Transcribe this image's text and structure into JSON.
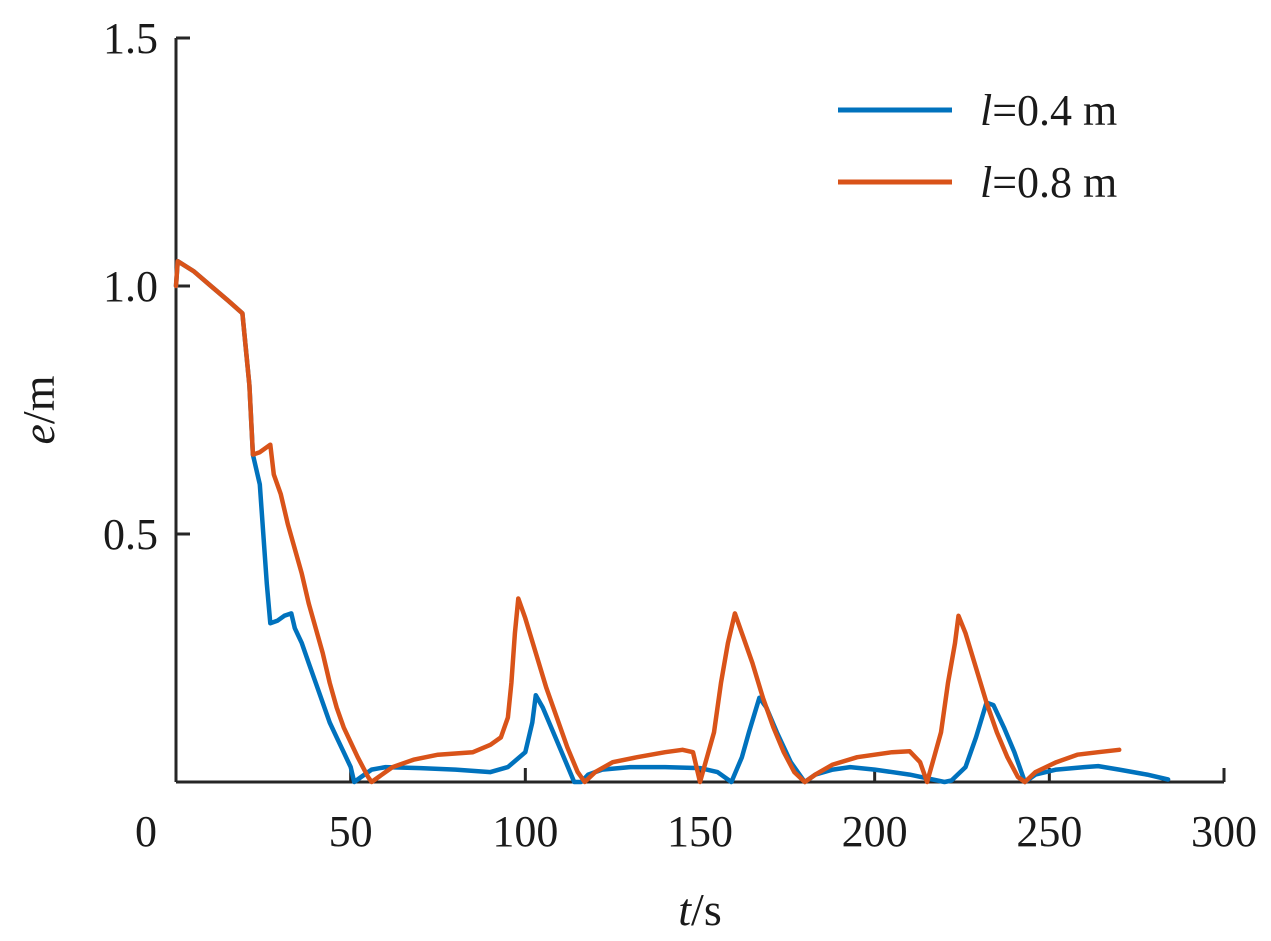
{
  "chart_data": {
    "type": "line",
    "xlabel": {
      "var": "t",
      "unit": "/s"
    },
    "ylabel": {
      "var": "e",
      "unit": "/m"
    },
    "xlim": [
      0,
      300
    ],
    "ylim": [
      0,
      1.5
    ],
    "xticks": [
      "0",
      "50",
      "100",
      "150",
      "200",
      "250",
      "300"
    ],
    "yticks": [
      "0.5",
      "1.0",
      "1.5"
    ],
    "xtick_values": [
      0,
      50,
      100,
      150,
      200,
      250,
      300
    ],
    "ytick_values": [
      0.5,
      1.0,
      1.5
    ],
    "grid": false,
    "legend_position": "top-right",
    "series": [
      {
        "name": "l=0.4 m",
        "legend_var": "l",
        "legend_rest": "=0.4 m",
        "color": "#0072BD",
        "points": [
          [
            0,
            1.0
          ],
          [
            0.5,
            1.05
          ],
          [
            5,
            1.03
          ],
          [
            10,
            1.0
          ],
          [
            15,
            0.97
          ],
          [
            19,
            0.945
          ],
          [
            21,
            0.8
          ],
          [
            22,
            0.66
          ],
          [
            24,
            0.6
          ],
          [
            25,
            0.5
          ],
          [
            26,
            0.4
          ],
          [
            27,
            0.32
          ],
          [
            29,
            0.325
          ],
          [
            31,
            0.335
          ],
          [
            33,
            0.34
          ],
          [
            34,
            0.31
          ],
          [
            36,
            0.28
          ],
          [
            38,
            0.24
          ],
          [
            40,
            0.2
          ],
          [
            42,
            0.16
          ],
          [
            44,
            0.12
          ],
          [
            46,
            0.09
          ],
          [
            48,
            0.06
          ],
          [
            50,
            0.03
          ],
          [
            51,
            0.0
          ],
          [
            53,
            0.01
          ],
          [
            56,
            0.025
          ],
          [
            60,
            0.03
          ],
          [
            70,
            0.028
          ],
          [
            80,
            0.025
          ],
          [
            90,
            0.02
          ],
          [
            95,
            0.03
          ],
          [
            100,
            0.06
          ],
          [
            102,
            0.12
          ],
          [
            103,
            0.175
          ],
          [
            105,
            0.15
          ],
          [
            108,
            0.1
          ],
          [
            111,
            0.05
          ],
          [
            114,
            0.0
          ],
          [
            116,
            0.0
          ],
          [
            118,
            0.015
          ],
          [
            122,
            0.025
          ],
          [
            130,
            0.03
          ],
          [
            140,
            0.03
          ],
          [
            150,
            0.028
          ],
          [
            155,
            0.02
          ],
          [
            159,
            0.0
          ],
          [
            162,
            0.05
          ],
          [
            164,
            0.1
          ],
          [
            167,
            0.17
          ],
          [
            169,
            0.15
          ],
          [
            172,
            0.1
          ],
          [
            176,
            0.04
          ],
          [
            180,
            0.0
          ],
          [
            183,
            0.015
          ],
          [
            188,
            0.025
          ],
          [
            193,
            0.03
          ],
          [
            200,
            0.025
          ],
          [
            210,
            0.015
          ],
          [
            220,
            0.0
          ],
          [
            222,
            0.003
          ],
          [
            226,
            0.03
          ],
          [
            229,
            0.09
          ],
          [
            232,
            0.16
          ],
          [
            234,
            0.155
          ],
          [
            237,
            0.11
          ],
          [
            240,
            0.06
          ],
          [
            243,
            0.0
          ],
          [
            246,
            0.015
          ],
          [
            252,
            0.025
          ],
          [
            260,
            0.03
          ],
          [
            264,
            0.032
          ],
          [
            270,
            0.025
          ],
          [
            278,
            0.015
          ],
          [
            284,
            0.005
          ]
        ]
      },
      {
        "name": "l=0.8 m",
        "legend_var": "l",
        "legend_rest": "=0.8 m",
        "color": "#D95319",
        "points": [
          [
            0,
            1.0
          ],
          [
            0.5,
            1.05
          ],
          [
            5,
            1.03
          ],
          [
            10,
            1.0
          ],
          [
            15,
            0.97
          ],
          [
            19,
            0.945
          ],
          [
            21,
            0.8
          ],
          [
            22,
            0.66
          ],
          [
            24,
            0.665
          ],
          [
            27,
            0.68
          ],
          [
            28,
            0.62
          ],
          [
            30,
            0.58
          ],
          [
            32,
            0.52
          ],
          [
            34,
            0.47
          ],
          [
            36,
            0.42
          ],
          [
            38,
            0.36
          ],
          [
            40,
            0.31
          ],
          [
            42,
            0.26
          ],
          [
            44,
            0.2
          ],
          [
            46,
            0.15
          ],
          [
            48,
            0.11
          ],
          [
            50,
            0.08
          ],
          [
            52,
            0.05
          ],
          [
            55,
            0.01
          ],
          [
            56,
            0.0
          ],
          [
            58,
            0.01
          ],
          [
            62,
            0.03
          ],
          [
            68,
            0.045
          ],
          [
            75,
            0.055
          ],
          [
            85,
            0.06
          ],
          [
            90,
            0.075
          ],
          [
            93,
            0.09
          ],
          [
            95,
            0.13
          ],
          [
            96,
            0.2
          ],
          [
            97,
            0.3
          ],
          [
            98,
            0.37
          ],
          [
            100,
            0.33
          ],
          [
            103,
            0.26
          ],
          [
            106,
            0.19
          ],
          [
            109,
            0.13
          ],
          [
            112,
            0.07
          ],
          [
            115,
            0.02
          ],
          [
            117,
            0.0
          ],
          [
            120,
            0.02
          ],
          [
            125,
            0.04
          ],
          [
            132,
            0.05
          ],
          [
            140,
            0.06
          ],
          [
            145,
            0.065
          ],
          [
            148,
            0.06
          ],
          [
            150,
            0.0
          ],
          [
            152,
            0.05
          ],
          [
            154,
            0.1
          ],
          [
            156,
            0.2
          ],
          [
            158,
            0.28
          ],
          [
            160,
            0.34
          ],
          [
            162,
            0.3
          ],
          [
            165,
            0.24
          ],
          [
            168,
            0.17
          ],
          [
            171,
            0.11
          ],
          [
            174,
            0.06
          ],
          [
            177,
            0.02
          ],
          [
            180,
            0.0
          ],
          [
            183,
            0.015
          ],
          [
            188,
            0.035
          ],
          [
            195,
            0.05
          ],
          [
            205,
            0.06
          ],
          [
            210,
            0.062
          ],
          [
            213,
            0.04
          ],
          [
            215,
            0.0
          ],
          [
            217,
            0.05
          ],
          [
            219,
            0.1
          ],
          [
            221,
            0.2
          ],
          [
            223,
            0.28
          ],
          [
            224,
            0.335
          ],
          [
            226,
            0.3
          ],
          [
            229,
            0.23
          ],
          [
            232,
            0.16
          ],
          [
            235,
            0.1
          ],
          [
            238,
            0.05
          ],
          [
            241,
            0.01
          ],
          [
            243,
            0.0
          ],
          [
            246,
            0.02
          ],
          [
            252,
            0.04
          ],
          [
            258,
            0.055
          ],
          [
            264,
            0.06
          ],
          [
            270,
            0.065
          ]
        ]
      }
    ]
  }
}
